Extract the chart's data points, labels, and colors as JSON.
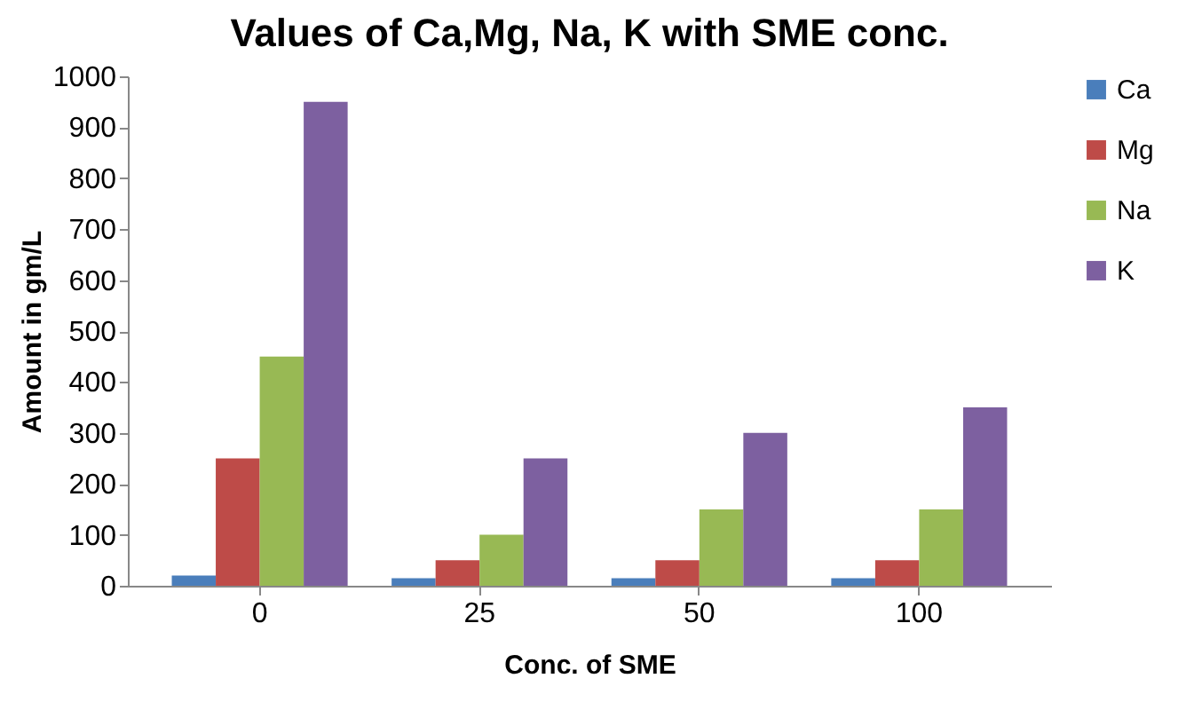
{
  "chart_data": {
    "type": "bar",
    "title": "Values of Ca,Mg, Na, K with  SME conc.",
    "xlabel": "Conc. of SME",
    "ylabel": "Amount in gm/L",
    "categories": [
      "0",
      "25",
      "50",
      "100"
    ],
    "series": [
      {
        "name": "Ca",
        "color": "#4a7ebb",
        "values": [
          20,
          15,
          15,
          15
        ]
      },
      {
        "name": "Mg",
        "color": "#be4b48",
        "values": [
          250,
          50,
          50,
          50
        ]
      },
      {
        "name": "Na",
        "color": "#98b954",
        "values": [
          450,
          100,
          150,
          150
        ]
      },
      {
        "name": "K",
        "color": "#7d60a0",
        "values": [
          950,
          250,
          300,
          350
        ]
      }
    ],
    "ylim": [
      0,
      1000
    ],
    "yticks": [
      0,
      100,
      200,
      300,
      400,
      500,
      600,
      700,
      800,
      900,
      1000
    ],
    "grid": false,
    "legend": "right"
  }
}
